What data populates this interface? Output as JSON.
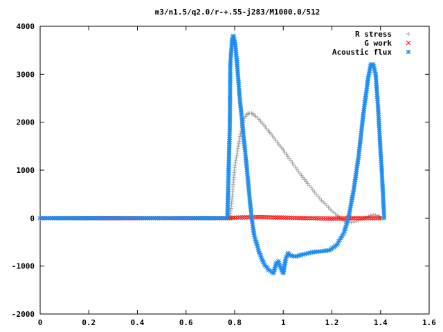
{
  "chart_data": {
    "type": "scatter",
    "title": "m3/n1.5/q2.0/r-+.55-j283/M1000.0/512",
    "xlabel": "",
    "ylabel": "",
    "xlim": [
      0,
      1.6
    ],
    "ylim": [
      -2000,
      4000
    ],
    "x_ticks": [
      0,
      0.2,
      0.4,
      0.6,
      0.8,
      1,
      1.2,
      1.4,
      1.6
    ],
    "x_tick_labels": [
      "0",
      "0.2",
      "0.4",
      "0.6",
      "0.8",
      "1",
      "1.2",
      "1.4",
      "1.6"
    ],
    "y_ticks": [
      -2000,
      -1000,
      0,
      1000,
      2000,
      3000,
      4000
    ],
    "y_tick_labels": [
      "-2000",
      "-1000",
      "0",
      "1000",
      "2000",
      "3000",
      "4000"
    ],
    "grid": false,
    "legend_position": "top-right",
    "series": [
      {
        "name": "R stress",
        "marker": "plus",
        "color": "#a0a0a0",
        "points": [
          [
            0.0,
            0
          ],
          [
            0.1,
            0
          ],
          [
            0.2,
            0
          ],
          [
            0.3,
            0
          ],
          [
            0.4,
            0
          ],
          [
            0.5,
            0
          ],
          [
            0.6,
            0
          ],
          [
            0.7,
            0
          ],
          [
            0.77,
            0
          ],
          [
            0.78,
            50
          ],
          [
            0.785,
            200
          ],
          [
            0.79,
            450
          ],
          [
            0.795,
            750
          ],
          [
            0.8,
            1050
          ],
          [
            0.81,
            1350
          ],
          [
            0.82,
            1650
          ],
          [
            0.83,
            1900
          ],
          [
            0.84,
            2080
          ],
          [
            0.85,
            2160
          ],
          [
            0.86,
            2190
          ],
          [
            0.87,
            2190
          ],
          [
            0.88,
            2150
          ],
          [
            0.9,
            2060
          ],
          [
            0.92,
            1940
          ],
          [
            0.95,
            1750
          ],
          [
            1.0,
            1420
          ],
          [
            1.05,
            1060
          ],
          [
            1.1,
            720
          ],
          [
            1.15,
            410
          ],
          [
            1.2,
            150
          ],
          [
            1.23,
            20
          ],
          [
            1.25,
            -60
          ],
          [
            1.27,
            -90
          ],
          [
            1.29,
            -80
          ],
          [
            1.31,
            -50
          ],
          [
            1.33,
            -10
          ],
          [
            1.35,
            40
          ],
          [
            1.37,
            70
          ],
          [
            1.39,
            50
          ],
          [
            1.4,
            0
          ],
          [
            1.41,
            0
          ]
        ]
      },
      {
        "name": "G work",
        "marker": "cross",
        "color": "#ff0000",
        "points": [
          [
            0.0,
            0
          ],
          [
            0.78,
            0
          ],
          [
            0.8,
            10
          ],
          [
            0.9,
            20
          ],
          [
            1.0,
            10
          ],
          [
            1.1,
            0
          ],
          [
            1.2,
            -10
          ],
          [
            1.3,
            0
          ],
          [
            1.4,
            0
          ]
        ]
      },
      {
        "name": "Acoustic flux",
        "marker": "star",
        "color": "#1e8cf0",
        "points": [
          [
            0.0,
            0
          ],
          [
            0.2,
            0
          ],
          [
            0.4,
            0
          ],
          [
            0.6,
            0
          ],
          [
            0.77,
            0
          ],
          [
            0.78,
            1900
          ],
          [
            0.782,
            3200
          ],
          [
            0.785,
            3420
          ],
          [
            0.79,
            3750
          ],
          [
            0.795,
            3800
          ],
          [
            0.8,
            3700
          ],
          [
            0.805,
            3500
          ],
          [
            0.81,
            3200
          ],
          [
            0.815,
            2900
          ],
          [
            0.82,
            2550
          ],
          [
            0.83,
            2050
          ],
          [
            0.84,
            1550
          ],
          [
            0.85,
            1050
          ],
          [
            0.86,
            500
          ],
          [
            0.87,
            0
          ],
          [
            0.88,
            -350
          ],
          [
            0.9,
            -700
          ],
          [
            0.92,
            -950
          ],
          [
            0.94,
            -1080
          ],
          [
            0.96,
            -1150
          ],
          [
            0.97,
            -950
          ],
          [
            0.98,
            -900
          ],
          [
            0.99,
            -1050
          ],
          [
            1.0,
            -1150
          ],
          [
            1.01,
            -850
          ],
          [
            1.02,
            -730
          ],
          [
            1.03,
            -780
          ],
          [
            1.05,
            -800
          ],
          [
            1.08,
            -760
          ],
          [
            1.12,
            -710
          ],
          [
            1.16,
            -690
          ],
          [
            1.19,
            -670
          ],
          [
            1.22,
            -560
          ],
          [
            1.25,
            -300
          ],
          [
            1.27,
            50
          ],
          [
            1.29,
            600
          ],
          [
            1.31,
            1300
          ],
          [
            1.33,
            2200
          ],
          [
            1.35,
            2950
          ],
          [
            1.36,
            3200
          ],
          [
            1.37,
            3200
          ],
          [
            1.38,
            3000
          ],
          [
            1.385,
            2650
          ],
          [
            1.39,
            2300
          ],
          [
            1.395,
            1850
          ],
          [
            1.4,
            1400
          ],
          [
            1.405,
            1000
          ],
          [
            1.41,
            500
          ],
          [
            1.415,
            0
          ]
        ]
      }
    ]
  }
}
